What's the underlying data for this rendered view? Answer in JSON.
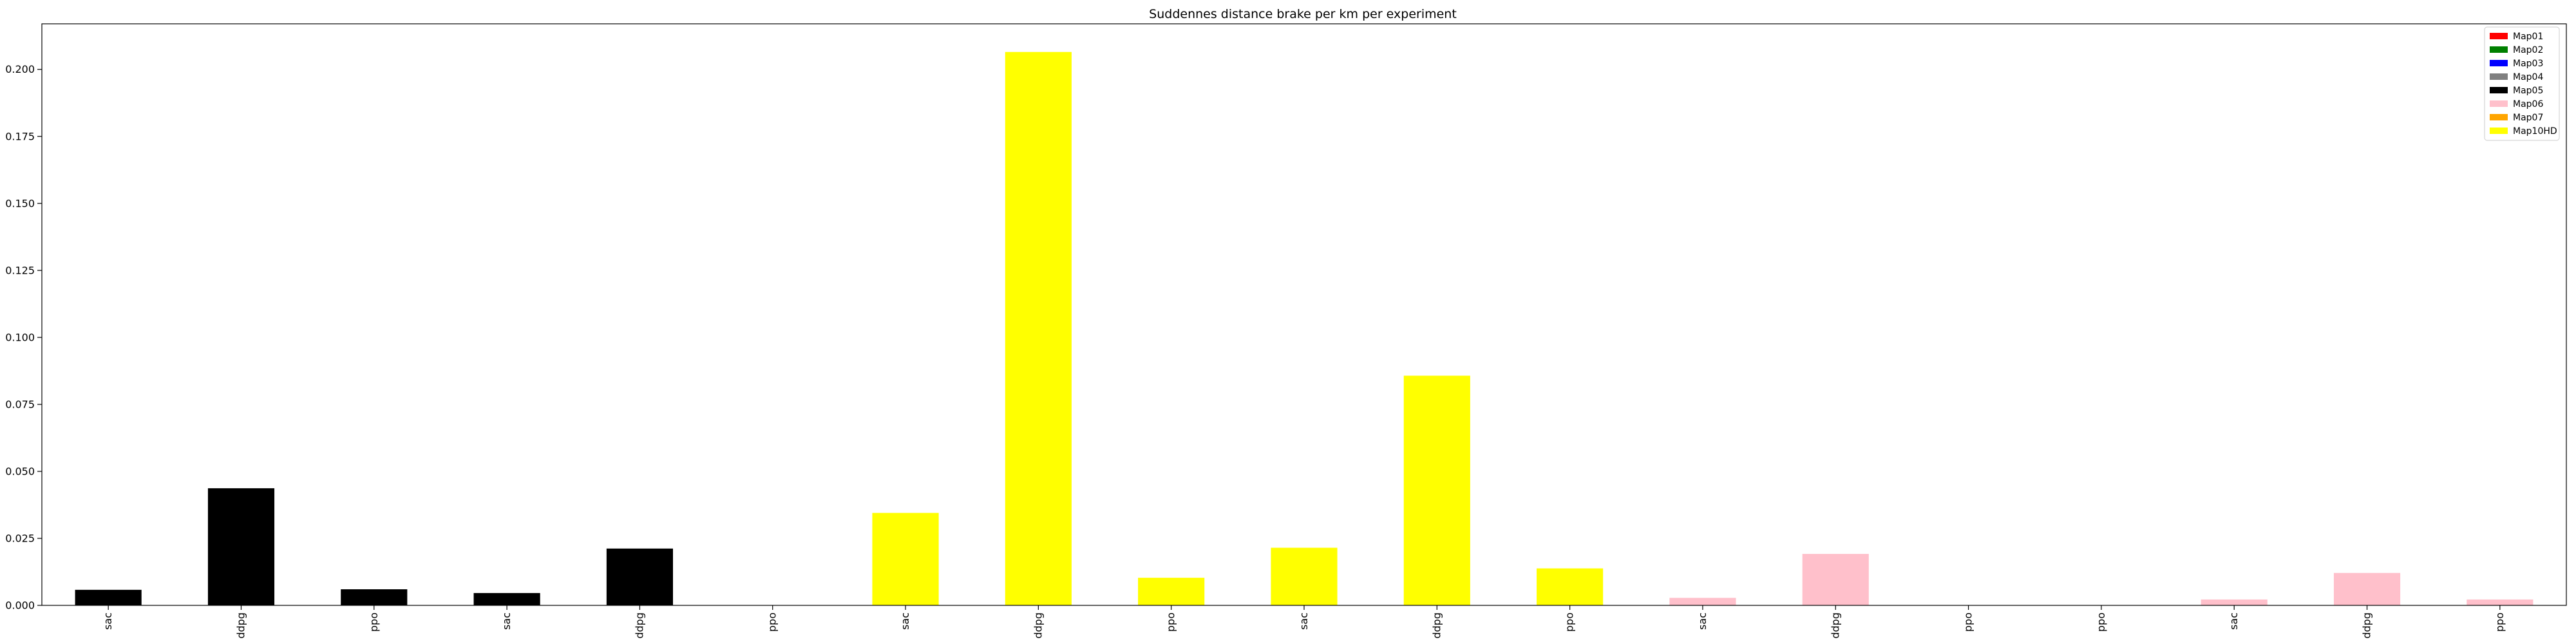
{
  "chart_data": {
    "type": "bar",
    "title": "Suddennes distance brake per km per experiment",
    "xlabel": "",
    "ylabel": "",
    "ylim": [
      0,
      0.217
    ],
    "yticks": [
      0.0,
      0.025,
      0.05,
      0.075,
      0.1,
      0.125,
      0.15,
      0.175,
      0.2
    ],
    "ytick_labels": [
      "0.000",
      "0.025",
      "0.050",
      "0.075",
      "0.100",
      "0.125",
      "0.150",
      "0.175",
      "0.200"
    ],
    "categories": [
      "sac",
      "ddpg",
      "ppo",
      "sac",
      "ddpg",
      "ppo",
      "sac",
      "ddpg",
      "ppo",
      "sac",
      "ddpg",
      "ppo",
      "sac",
      "ddpg",
      "ppo",
      "ppo",
      "sac",
      "ddpg",
      "ppo"
    ],
    "values": [
      0.0058,
      0.0437,
      0.006,
      0.0046,
      0.0212,
      0.0,
      0.0345,
      0.2065,
      0.0103,
      0.0215,
      0.0857,
      0.0138,
      0.0028,
      0.0192,
      0.0,
      0.0,
      0.0022,
      0.0121,
      0.0022
    ],
    "bar_colors": [
      "#000000",
      "#000000",
      "#000000",
      "#000000",
      "#000000",
      "#000000",
      "#ffff00",
      "#ffff00",
      "#ffff00",
      "#ffff00",
      "#ffff00",
      "#ffff00",
      "#ffc0cb",
      "#ffc0cb",
      "#ffc0cb",
      "#ffc0cb",
      "#ffc0cb",
      "#ffc0cb",
      "#ffc0cb"
    ],
    "legend": [
      {
        "name": "Map01",
        "color": "#ff0000"
      },
      {
        "name": "Map02",
        "color": "#008000"
      },
      {
        "name": "Map03",
        "color": "#0000ff"
      },
      {
        "name": "Map04",
        "color": "#808080"
      },
      {
        "name": "Map05",
        "color": "#000000"
      },
      {
        "name": "Map06",
        "color": "#ffc0cb"
      },
      {
        "name": "Map07",
        "color": "#ffa500"
      },
      {
        "name": "Map10HD",
        "color": "#ffff00"
      }
    ],
    "legend_position": "top-right",
    "grid": false
  }
}
